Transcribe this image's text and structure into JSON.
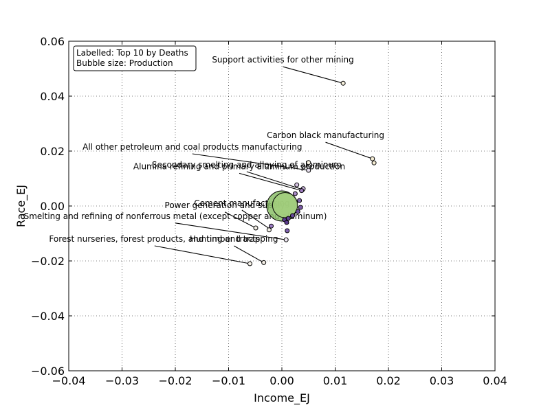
{
  "chart_data": {
    "type": "scatter",
    "title": "",
    "xlabel": "Income_EJ",
    "ylabel": "Race_EJ",
    "xlim": [
      -0.04,
      0.04
    ],
    "ylim": [
      -0.06,
      0.06
    ],
    "xticks": [
      -0.04,
      -0.03,
      -0.02,
      -0.01,
      0.0,
      0.01,
      0.02,
      0.03,
      0.04
    ],
    "yticks": [
      -0.06,
      -0.04,
      -0.02,
      0.0,
      0.02,
      0.04,
      0.06
    ],
    "xtick_labels": [
      "−0.04",
      "−0.03",
      "−0.02",
      "−0.01",
      "0.00",
      "0.01",
      "0.02",
      "0.03",
      "0.04"
    ],
    "ytick_labels": [
      "−0.06",
      "−0.04",
      "−0.02",
      "0.00",
      "0.02",
      "0.04",
      "0.06"
    ],
    "grid": true,
    "legend": {
      "placement": "top-left",
      "lines": [
        "Labelled: Top 10 by Deaths",
        "Bubble size: Production"
      ]
    },
    "annotations": [
      {
        "label": "Support activities for other mining",
        "x": 0.0115,
        "y": 0.0447,
        "text_x": 0.0002,
        "text_y": 0.0522
      },
      {
        "label": "Carbon black manufacturing",
        "x": 0.017,
        "y": 0.0172,
        "text_x": 0.0082,
        "text_y": 0.0247
      },
      {
        "label": "All other petroleum and coal products manufacturing",
        "x": 0.005,
        "y": 0.013,
        "text_x": -0.0168,
        "text_y": 0.0205
      },
      {
        "label": "Secondary smelting and alloying of aluminum",
        "x": 0.0039,
        "y": 0.006,
        "text_x": -0.0066,
        "text_y": 0.014
      },
      {
        "label": "Alumina refining and primary aluminum production",
        "x": 0.0039,
        "y": 0.0055,
        "text_x": -0.008,
        "text_y": 0.0134
      },
      {
        "label": "Cement manufacturing",
        "x": -0.002,
        "y": -0.0087,
        "text_x": -0.0075,
        "text_y": 0.0
      },
      {
        "label": "Power generation and supply",
        "x": -0.0049,
        "y": -0.008,
        "text_x": -0.0107,
        "text_y": -0.0007
      },
      {
        "label": "Smelting and refining of nonferrous metal (except copper and aluminum)",
        "x": 0.0008,
        "y": -0.0123,
        "text_x": -0.02,
        "text_y": -0.0047
      },
      {
        "label": "Forest nurseries, forest products, and timber tracts",
        "x": -0.006,
        "y": -0.021,
        "text_x": -0.0239,
        "text_y": -0.013
      },
      {
        "label": "Hunting and trapping",
        "x": -0.0034,
        "y": -0.0206,
        "text_x": -0.009,
        "text_y": -0.013
      }
    ],
    "series": [
      {
        "points": [
          {
            "x": 0.0,
            "y": 0.0,
            "size": 0.16,
            "color": "#8cc06a"
          },
          {
            "x": 0.0006,
            "y": 0.0003,
            "size": 0.11,
            "color": "#a3cf7e"
          },
          {
            "x": 0.0115,
            "y": 0.0447,
            "size": 0.003,
            "color": "#f6f0dc"
          },
          {
            "x": 0.017,
            "y": 0.0172,
            "size": 0.003,
            "color": "#f5edd4"
          },
          {
            "x": 0.0173,
            "y": 0.0157,
            "size": 0.003,
            "color": "#f5edd4"
          },
          {
            "x": 0.005,
            "y": 0.0158,
            "size": 0.003,
            "color": "#f7f1e1"
          },
          {
            "x": 0.005,
            "y": 0.013,
            "size": 0.003,
            "color": "#e9e1f0"
          },
          {
            "x": 0.0028,
            "y": 0.0077,
            "size": 0.003,
            "color": "#d4c2e1"
          },
          {
            "x": 0.0039,
            "y": 0.006,
            "size": 0.003,
            "color": "#b79cd1"
          },
          {
            "x": 0.004,
            "y": 0.0063,
            "size": 0.003,
            "color": "#c8b2da"
          },
          {
            "x": 0.0037,
            "y": 0.0056,
            "size": 0.003,
            "color": "#9f7ec0"
          },
          {
            "x": 0.0033,
            "y": 0.002,
            "size": 0.003,
            "color": "#8466b3"
          },
          {
            "x": 0.0035,
            "y": -0.0005,
            "size": 0.003,
            "color": "#7b5aa8"
          },
          {
            "x": 0.0025,
            "y": 0.0045,
            "size": 0.003,
            "color": "#a98ac6"
          },
          {
            "x": 0.003,
            "y": -0.002,
            "size": 0.003,
            "color": "#6e4f9f"
          },
          {
            "x": 0.002,
            "y": -0.0035,
            "size": 0.003,
            "color": "#6a4aa0"
          },
          {
            "x": 0.0005,
            "y": -0.005,
            "size": 0.003,
            "color": "#5c3d91"
          },
          {
            "x": 0.0009,
            "y": -0.006,
            "size": 0.003,
            "color": "#5a3a8c"
          },
          {
            "x": 0.0012,
            "y": -0.0045,
            "size": 0.003,
            "color": "#62448f"
          },
          {
            "x": 0.001,
            "y": -0.009,
            "size": 0.003,
            "color": "#7f63b0"
          },
          {
            "x": -0.002,
            "y": -0.0073,
            "size": 0.003,
            "color": "#9b7cc2"
          },
          {
            "x": -0.0049,
            "y": -0.008,
            "size": 0.003,
            "color": "#f3efe6"
          },
          {
            "x": -0.0024,
            "y": -0.0087,
            "size": 0.003,
            "color": "#f3efe6"
          },
          {
            "x": 0.0008,
            "y": -0.0123,
            "size": 0.003,
            "color": "#efe9f3"
          },
          {
            "x": -0.006,
            "y": -0.021,
            "size": 0.003,
            "color": "#f7f3ea"
          },
          {
            "x": -0.0034,
            "y": -0.0206,
            "size": 0.003,
            "color": "#f3eee5"
          }
        ]
      }
    ]
  }
}
